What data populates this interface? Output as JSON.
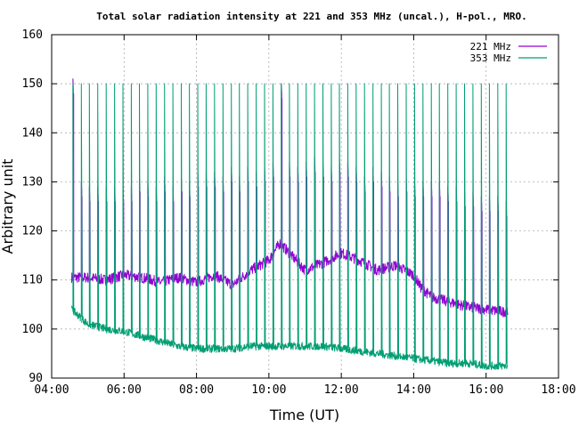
{
  "chart_data": {
    "type": "line",
    "title": "Total solar radiation intensity at 221 and 353 MHz (uncal.), H-pol., MRO.",
    "xlabel": "Time (UT)",
    "ylabel": "Arbitrary unit",
    "x_unit": "hours UT",
    "xlim": [
      4.0,
      18.0
    ],
    "ylim": [
      90,
      160
    ],
    "x_ticks": [
      4,
      6,
      8,
      10,
      12,
      14,
      16,
      18
    ],
    "x_tick_labels": [
      "04:00",
      "06:00",
      "08:00",
      "10:00",
      "12:00",
      "14:00",
      "16:00",
      "18:00"
    ],
    "y_ticks": [
      90,
      100,
      110,
      120,
      130,
      140,
      150,
      160
    ],
    "y_tick_labels": [
      "90",
      "100",
      "110",
      "120",
      "130",
      "140",
      "150",
      "160"
    ],
    "grid": true,
    "legend_position": "top-right",
    "series": [
      {
        "name": "221 MHz",
        "color": "#9400d3",
        "x": [
          4.55,
          5.0,
          5.5,
          6.0,
          6.5,
          7.0,
          7.5,
          8.0,
          8.5,
          9.0,
          9.5,
          10.0,
          10.3,
          10.5,
          11.0,
          11.5,
          12.0,
          12.5,
          13.0,
          13.5,
          14.0,
          14.2,
          14.5,
          15.0,
          15.5,
          16.0,
          16.5,
          16.6
        ],
        "y": [
          110.5,
          110.5,
          110.0,
          111.0,
          110.5,
          109.5,
          110.5,
          109.5,
          111.0,
          109.0,
          112.0,
          114.0,
          117.5,
          116.0,
          112.0,
          113.5,
          115.5,
          114.0,
          112.0,
          113.0,
          111.0,
          108.5,
          106.5,
          105.5,
          104.5,
          104.0,
          103.5,
          104.0
        ],
        "spike_tops": [
          151,
          130,
          129,
          129,
          129,
          129,
          129,
          129,
          131,
          130,
          129,
          131,
          129,
          131,
          130,
          132,
          132,
          132,
          131,
          133,
          131,
          133,
          132,
          133,
          134,
          150,
          134,
          133,
          134,
          135,
          134,
          133,
          135,
          134,
          133,
          131,
          133,
          132,
          131,
          130,
          131,
          130,
          130,
          130,
          130,
          129,
          129,
          128,
          128,
          127,
          127,
          127,
          126
        ]
      },
      {
        "name": "353 MHz",
        "color": "#009e73",
        "x": [
          4.55,
          5.0,
          5.5,
          6.0,
          6.5,
          7.0,
          7.5,
          8.0,
          8.5,
          9.0,
          9.5,
          10.0,
          10.5,
          11.0,
          11.5,
          12.0,
          12.5,
          13.0,
          13.5,
          14.0,
          14.5,
          15.0,
          15.5,
          16.0,
          16.5,
          16.6
        ],
        "y": [
          104.0,
          101.0,
          100.0,
          99.5,
          98.5,
          97.5,
          96.5,
          96.0,
          96.0,
          96.0,
          96.5,
          96.5,
          96.5,
          96.5,
          96.5,
          96.0,
          95.5,
          95.0,
          94.5,
          94.0,
          93.5,
          93.0,
          93.0,
          92.5,
          92.5,
          92.5
        ],
        "spike_tops": [
          150,
          150,
          150,
          150,
          150,
          150,
          150,
          150,
          150,
          150,
          150,
          150,
          150,
          150,
          150,
          150,
          150,
          150,
          150,
          150,
          150,
          150,
          150,
          150,
          150,
          150,
          150,
          150,
          150,
          150,
          150,
          150,
          150,
          150,
          150,
          150,
          150,
          150,
          150,
          150,
          150,
          150,
          150,
          150,
          150,
          150,
          150,
          150,
          150,
          150,
          150,
          150,
          150
        ]
      }
    ]
  }
}
